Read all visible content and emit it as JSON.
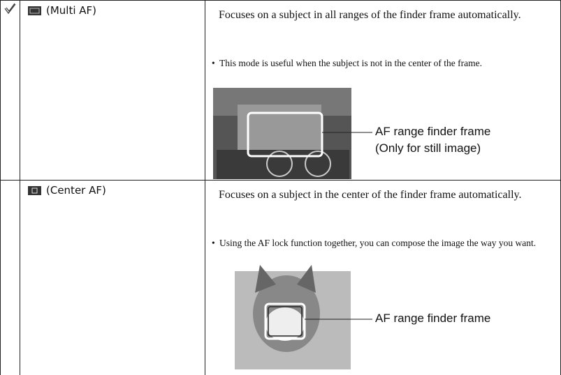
{
  "rows": [
    {
      "label": "(Multi AF)",
      "description": "Focuses on a subject in all ranges of the finder frame automatically.",
      "bullet": "This mode is useful when the subject is not in the center of the frame.",
      "callout": [
        "AF range finder frame",
        "(Only for still image)"
      ]
    },
    {
      "label": "(Center AF)",
      "description": "Focuses on a subject in the center of the finder frame automatically.",
      "bullet": "Using the AF lock function together, you can compose the image the way you want.",
      "callout": [
        "AF range finder frame"
      ]
    }
  ]
}
